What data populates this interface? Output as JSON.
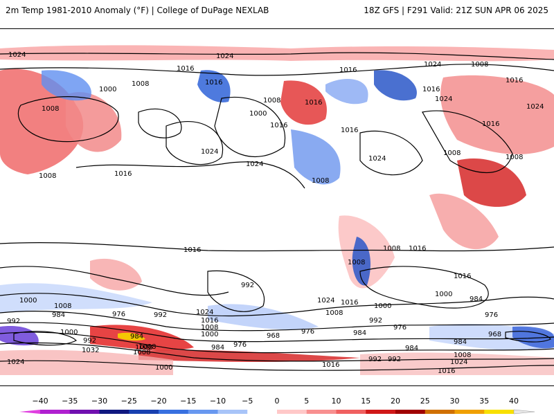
{
  "header": {
    "title": "2m Temp 1981-2010 Anomaly (°F) | College of DuPage NEXLAB",
    "run_info": "18Z GFS | F291 Valid: 21Z SUN APR 06 2025"
  },
  "map": {
    "projection": "global-equirectangular",
    "isobar_labels": [
      {
        "text": "1024"
      },
      {
        "text": "1024"
      },
      {
        "text": "1016"
      },
      {
        "text": "1016"
      },
      {
        "text": "1008"
      },
      {
        "text": "1000"
      },
      {
        "text": "1008"
      },
      {
        "text": "1016"
      },
      {
        "text": "1016"
      },
      {
        "text": "1008"
      },
      {
        "text": "1000"
      },
      {
        "text": "1016"
      },
      {
        "text": "1024"
      },
      {
        "text": "1024"
      },
      {
        "text": "1016"
      },
      {
        "text": "1008"
      },
      {
        "text": "1024"
      },
      {
        "text": "1008"
      },
      {
        "text": "1016"
      },
      {
        "text": "1024"
      },
      {
        "text": "1016"
      },
      {
        "text": "1024"
      },
      {
        "text": "1008"
      },
      {
        "text": "1008"
      },
      {
        "text": "1008"
      },
      {
        "text": "1016"
      },
      {
        "text": "1016"
      },
      {
        "text": "1024"
      },
      {
        "text": "1016"
      },
      {
        "text": "1008"
      },
      {
        "text": "1016"
      },
      {
        "text": "1008"
      },
      {
        "text": "1000"
      },
      {
        "text": "1008"
      },
      {
        "text": "992"
      },
      {
        "text": "984"
      },
      {
        "text": "976"
      },
      {
        "text": "992"
      },
      {
        "text": "1024"
      },
      {
        "text": "1016"
      },
      {
        "text": "1008"
      },
      {
        "text": "1000"
      },
      {
        "text": "992"
      },
      {
        "text": "1000"
      },
      {
        "text": "1032"
      },
      {
        "text": "984"
      },
      {
        "text": "1008"
      },
      {
        "text": "984"
      },
      {
        "text": "976"
      },
      {
        "text": "968"
      },
      {
        "text": "976"
      },
      {
        "text": "1024"
      },
      {
        "text": "1016"
      },
      {
        "text": "1008"
      },
      {
        "text": "992"
      },
      {
        "text": "984"
      },
      {
        "text": "1000"
      },
      {
        "text": "984"
      },
      {
        "text": "976"
      },
      {
        "text": "992"
      },
      {
        "text": "1016"
      },
      {
        "text": "1000"
      },
      {
        "text": "984"
      },
      {
        "text": "992"
      },
      {
        "text": "968"
      },
      {
        "text": "1024"
      },
      {
        "text": "1000"
      },
      {
        "text": "1008"
      },
      {
        "text": "1024"
      },
      {
        "text": "1016"
      },
      {
        "text": "1008"
      },
      {
        "text": "976"
      },
      {
        "text": "992"
      },
      {
        "text": "984"
      },
      {
        "text": "1008"
      },
      {
        "text": "1016"
      }
    ]
  },
  "colorbar": {
    "ticks": [
      "−40",
      "−35",
      "−30",
      "−25",
      "−20",
      "−15",
      "−10",
      "−5",
      "0",
      "5",
      "10",
      "15",
      "20",
      "25",
      "30",
      "35",
      "40"
    ],
    "colors": [
      "#e040e0",
      "#b020d0",
      "#7010b0",
      "#101880",
      "#1840b0",
      "#3870e0",
      "#6898f0",
      "#a8c4f8",
      "#ffffff",
      "#ffc8c8",
      "#f89090",
      "#f06060",
      "#d01818",
      "#a00000",
      "#d07000",
      "#f0a000",
      "#f8e000"
    ],
    "unit": "°F"
  }
}
